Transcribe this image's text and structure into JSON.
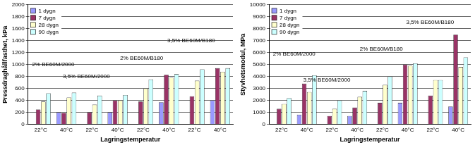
{
  "chart_data": [
    {
      "type": "bar",
      "y_label": "Pressdraghållfasthet, kPa",
      "x_label": "Lagringstemperatur",
      "categories": [
        "22°C",
        "40°C",
        "22°C",
        "40°C",
        "22°C",
        "40°C",
        "22°C",
        "40°C"
      ],
      "series": [
        {
          "name": "1 dygn",
          "color": "#9999ff",
          "values": [
            null,
            200,
            null,
            200,
            null,
            370,
            null,
            400
          ]
        },
        {
          "name": "7 dygn",
          "color": "#993366",
          "values": [
            250,
            190,
            200,
            400,
            380,
            830,
            470,
            940
          ]
        },
        {
          "name": "28 dygn",
          "color": "#ffffcc",
          "values": [
            380,
            450,
            330,
            400,
            600,
            780,
            730,
            880
          ]
        },
        {
          "name": "90 dygn",
          "color": "#ccffff",
          "values": [
            520,
            530,
            480,
            490,
            750,
            840,
            920,
            940
          ]
        }
      ],
      "annotations": [
        "3,5% BE60M/B180",
        "2% BE60M/B180",
        "2% BE60M/2000",
        "3,5% BE60M/2000"
      ],
      "ylim": [
        0,
        2000
      ],
      "yticks": [
        0,
        200,
        400,
        600,
        800,
        1000,
        1200,
        1400,
        1600,
        1800,
        2000
      ],
      "grid": true,
      "legend": "top-left"
    },
    {
      "type": "bar",
      "y_label": "Styvhetsmodul, MPa",
      "x_label": "Lagringstemperatur",
      "categories": [
        "22°C",
        "40°C",
        "22°C",
        "40°C",
        "22°C",
        "40°C",
        "22°C",
        "40°C"
      ],
      "series": [
        {
          "name": "1 dygn",
          "color": "#9999ff",
          "values": [
            null,
            800,
            null,
            700,
            null,
            1800,
            null,
            1500
          ]
        },
        {
          "name": "7 dygn",
          "color": "#993366",
          "values": [
            1300,
            3400,
            700,
            1400,
            1800,
            5000,
            2400,
            7500
          ]
        },
        {
          "name": "28 dygn",
          "color": "#ffffcc",
          "values": [
            1700,
            2700,
            1300,
            2300,
            3300,
            4900,
            3700,
            4800
          ]
        },
        {
          "name": "90 dygn",
          "color": "#ccffff",
          "values": [
            2200,
            4100,
            2000,
            2800,
            4000,
            5100,
            3700,
            5600
          ]
        }
      ],
      "annotations": [
        "3,5% BE60M/B180",
        "2% BE60M/B180",
        "2% BE60M/2000",
        "3,5% BE60M/2000"
      ],
      "ylim": [
        0,
        10000
      ],
      "yticks": [
        0,
        1000,
        2000,
        3000,
        4000,
        5000,
        6000,
        7000,
        8000,
        9000,
        10000
      ],
      "grid": true,
      "legend": "top-left"
    }
  ]
}
